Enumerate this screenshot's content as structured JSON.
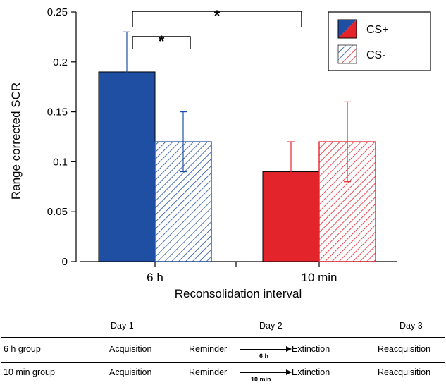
{
  "chart_data": {
    "type": "bar",
    "ylabel": "Range corrected SCR",
    "xlabel": "Reconsolidation interval",
    "ylim": [
      0,
      0.25
    ],
    "yticks": [
      0,
      0.05,
      0.1,
      0.15,
      0.2,
      0.25
    ],
    "ytick_labels": [
      "0",
      "0.05",
      "0.1",
      "0.15",
      "0.2",
      "0.25"
    ],
    "categories": [
      "6 h",
      "10 min"
    ],
    "series": [
      {
        "name": "CS+",
        "pattern": "solid",
        "values": [
          0.19,
          0.09
        ],
        "errors": [
          0.04,
          0.03
        ]
      },
      {
        "name": "CS-",
        "pattern": "hatched",
        "values": [
          0.12,
          0.12
        ],
        "errors": [
          0.03,
          0.04
        ]
      }
    ],
    "group_colors": [
      "#1f4fa3",
      "#e3242b"
    ],
    "legend_position": "top-right",
    "significance": [
      {
        "label": "*",
        "between": "6 h CS+ vs 6 h CS-"
      },
      {
        "label": "*",
        "between": "6 h CS+ vs 10 min CS+"
      }
    ]
  },
  "protocol": {
    "days": [
      "Day 1",
      "Day 2",
      "Day 3"
    ],
    "rows": [
      {
        "group": "6 h group",
        "day1": "Acquisition",
        "reminder": "Reminder",
        "delay": "6 h",
        "extinction": "Extinction",
        "day3": "Reacquisition"
      },
      {
        "group": "10 min group",
        "day1": "Acquisition",
        "reminder": "Reminder",
        "delay": "10 min",
        "extinction": "Extinction",
        "day3": "Reacquisition"
      }
    ]
  }
}
